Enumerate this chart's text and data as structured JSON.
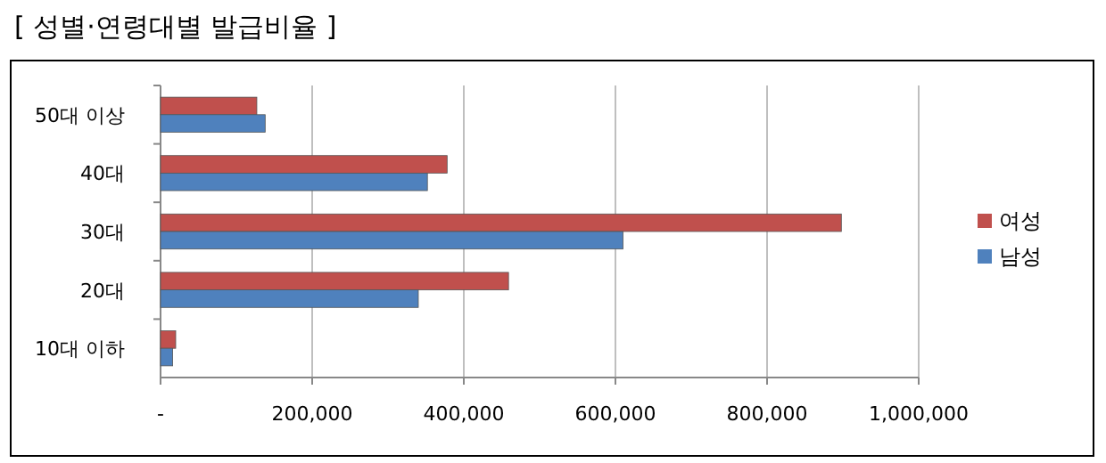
{
  "chart_data": {
    "type": "bar",
    "orientation": "horizontal",
    "title": "[ 성별·연령대별 발급비율 ]",
    "categories": [
      "50대 이상",
      "40대",
      "30대",
      "20대",
      "10대 이하"
    ],
    "series": [
      {
        "name": "여성",
        "color": "#c0504d",
        "values": [
          127000,
          378000,
          898000,
          459000,
          20000
        ]
      },
      {
        "name": "남성",
        "color": "#4f81bd",
        "values": [
          138000,
          352000,
          610000,
          340000,
          16000
        ]
      }
    ],
    "xlim": [
      0,
      1000000
    ],
    "xticks": [
      {
        "value": 0,
        "label": "-"
      },
      {
        "value": 200000,
        "label": "200,000"
      },
      {
        "value": 400000,
        "label": "400,000"
      },
      {
        "value": 600000,
        "label": "600,000"
      },
      {
        "value": 800000,
        "label": "800,000"
      },
      {
        "value": 1000000,
        "label": "1,000,000"
      }
    ],
    "grid": "x",
    "legend": "right"
  }
}
